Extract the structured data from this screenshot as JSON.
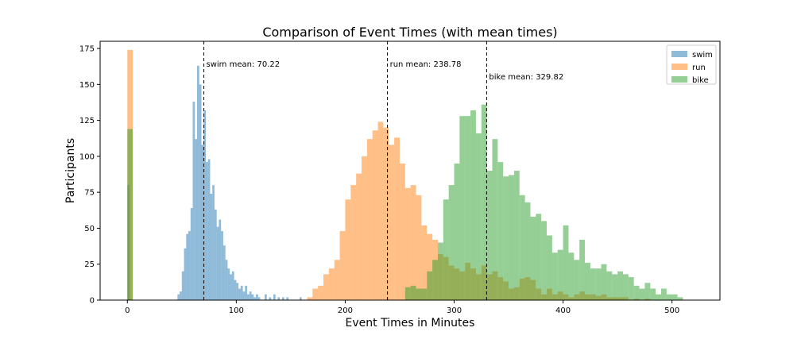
{
  "chart_data": {
    "type": "bar",
    "title": "Comparison of Event Times (with mean times)",
    "xlabel": "Event Times in Minutes",
    "ylabel": "Participants",
    "xlim": [
      -25,
      544
    ],
    "ylim": [
      0,
      180
    ],
    "xticks": [
      0,
      100,
      200,
      300,
      400,
      500
    ],
    "yticks": [
      0,
      25,
      50,
      75,
      100,
      125,
      150,
      175
    ],
    "grid": false,
    "legend_position": "top-right",
    "colors": {
      "swim": "#1f77b4",
      "run": "#ff7f0e",
      "bike": "#2ca02c"
    },
    "series": [
      {
        "name": "swim",
        "bin_width": 2,
        "values": [
          [
            0,
            80
          ],
          [
            46,
            4
          ],
          [
            48,
            6
          ],
          [
            50,
            20
          ],
          [
            52,
            36
          ],
          [
            54,
            46
          ],
          [
            56,
            48
          ],
          [
            58,
            64
          ],
          [
            60,
            138
          ],
          [
            62,
            112
          ],
          [
            64,
            163
          ],
          [
            66,
            150
          ],
          [
            68,
            108
          ],
          [
            70,
            132
          ],
          [
            72,
            96
          ],
          [
            74,
            98
          ],
          [
            76,
            74
          ],
          [
            78,
            80
          ],
          [
            80,
            63
          ],
          [
            82,
            51
          ],
          [
            84,
            56
          ],
          [
            86,
            48
          ],
          [
            88,
            38
          ],
          [
            90,
            28
          ],
          [
            92,
            22
          ],
          [
            94,
            18
          ],
          [
            96,
            20
          ],
          [
            98,
            14
          ],
          [
            100,
            12
          ],
          [
            102,
            8
          ],
          [
            104,
            10
          ],
          [
            106,
            6
          ],
          [
            108,
            10
          ],
          [
            110,
            4
          ],
          [
            112,
            6
          ],
          [
            114,
            4
          ],
          [
            116,
            2
          ],
          [
            118,
            4
          ],
          [
            120,
            2
          ],
          [
            126,
            4
          ],
          [
            130,
            2
          ],
          [
            134,
            4
          ],
          [
            138,
            2
          ],
          [
            142,
            2
          ],
          [
            146,
            2
          ],
          [
            158,
            2
          ]
        ]
      },
      {
        "name": "run",
        "bin_width": 5,
        "values": [
          [
            0,
            174
          ],
          [
            165,
            2
          ],
          [
            170,
            8
          ],
          [
            175,
            10
          ],
          [
            180,
            18
          ],
          [
            185,
            22
          ],
          [
            190,
            28
          ],
          [
            195,
            48
          ],
          [
            200,
            70
          ],
          [
            205,
            80
          ],
          [
            210,
            88
          ],
          [
            215,
            100
          ],
          [
            220,
            112
          ],
          [
            225,
            118
          ],
          [
            230,
            124
          ],
          [
            235,
            120
          ],
          [
            240,
            108
          ],
          [
            245,
            113
          ],
          [
            250,
            95
          ],
          [
            255,
            78
          ],
          [
            260,
            80
          ],
          [
            265,
            73
          ],
          [
            270,
            52
          ],
          [
            275,
            46
          ],
          [
            280,
            42
          ],
          [
            285,
            32
          ],
          [
            290,
            30
          ],
          [
            295,
            24
          ],
          [
            300,
            22
          ],
          [
            305,
            20
          ],
          [
            310,
            26
          ],
          [
            315,
            22
          ],
          [
            320,
            18
          ],
          [
            325,
            24
          ],
          [
            330,
            18
          ],
          [
            335,
            20
          ],
          [
            340,
            16
          ],
          [
            345,
            13
          ],
          [
            350,
            8
          ],
          [
            355,
            9
          ],
          [
            360,
            15
          ],
          [
            365,
            16
          ],
          [
            370,
            14
          ],
          [
            375,
            8
          ],
          [
            380,
            4
          ],
          [
            385,
            8
          ],
          [
            390,
            4
          ],
          [
            395,
            6
          ],
          [
            400,
            4
          ],
          [
            405,
            2
          ],
          [
            410,
            4
          ],
          [
            415,
            6
          ],
          [
            420,
            4
          ],
          [
            425,
            4
          ],
          [
            430,
            3
          ],
          [
            435,
            4
          ],
          [
            440,
            2
          ],
          [
            445,
            2
          ],
          [
            450,
            2
          ],
          [
            455,
            2
          ],
          [
            465,
            1
          ],
          [
            475,
            1
          ]
        ]
      },
      {
        "name": "bike",
        "bin_width": 5,
        "values": [
          [
            0,
            119
          ],
          [
            255,
            9
          ],
          [
            260,
            10
          ],
          [
            265,
            8
          ],
          [
            270,
            8
          ],
          [
            275,
            20
          ],
          [
            280,
            28
          ],
          [
            285,
            40
          ],
          [
            290,
            70
          ],
          [
            295,
            80
          ],
          [
            300,
            95
          ],
          [
            305,
            128
          ],
          [
            310,
            128
          ],
          [
            315,
            132
          ],
          [
            320,
            116
          ],
          [
            325,
            136
          ],
          [
            330,
            90
          ],
          [
            335,
            112
          ],
          [
            340,
            96
          ],
          [
            345,
            86
          ],
          [
            350,
            87
          ],
          [
            355,
            90
          ],
          [
            360,
            73
          ],
          [
            365,
            68
          ],
          [
            370,
            58
          ],
          [
            375,
            60
          ],
          [
            380,
            55
          ],
          [
            385,
            45
          ],
          [
            390,
            33
          ],
          [
            395,
            35
          ],
          [
            400,
            52
          ],
          [
            405,
            33
          ],
          [
            410,
            28
          ],
          [
            415,
            42
          ],
          [
            420,
            26
          ],
          [
            425,
            22
          ],
          [
            430,
            22
          ],
          [
            435,
            25
          ],
          [
            440,
            20
          ],
          [
            445,
            18
          ],
          [
            450,
            20
          ],
          [
            455,
            18
          ],
          [
            460,
            16
          ],
          [
            465,
            10
          ],
          [
            470,
            8
          ],
          [
            475,
            12
          ],
          [
            480,
            8
          ],
          [
            485,
            4
          ],
          [
            490,
            8
          ],
          [
            495,
            4
          ],
          [
            500,
            4
          ],
          [
            505,
            2
          ]
        ]
      }
    ],
    "mean_lines": [
      {
        "x": 70.22,
        "label": "swim mean: 70.22"
      },
      {
        "x": 238.78,
        "label": "run mean: 238.78"
      },
      {
        "x": 329.82,
        "label": "bike mean: 329.82"
      }
    ]
  }
}
